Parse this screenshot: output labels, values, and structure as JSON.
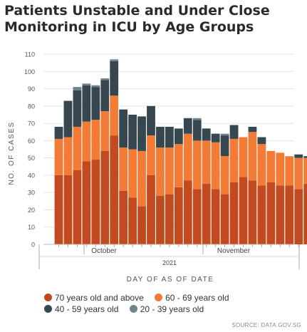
{
  "title": "Patients Unstable and Under Close Monitoring in ICU by Age Groups",
  "source": "SOURCE: DATA.GOV.SG",
  "chart_data": {
    "type": "bar",
    "stacked": true,
    "xlabel": "DAY OF AS OF DATE",
    "ylabel": "NO. OF CASES",
    "ylim": [
      0,
      110
    ],
    "yticks": [
      0,
      10,
      20,
      30,
      40,
      50,
      60,
      70,
      80,
      90,
      100,
      110
    ],
    "grid": "horizontal",
    "legend_position": "bottom",
    "x_tick_labels": [
      "October",
      "November"
    ],
    "year_label": "2021",
    "colors": {
      "70 years old and above": "#c24a1e",
      "60 - 69 years old": "#f47b36",
      "40 - 59 years old": "#364750",
      "20 - 39 years old": "#6f848c"
    },
    "series": [
      {
        "name": "70 years old and above",
        "values": [
          40,
          40,
          43,
          48,
          49,
          54,
          63,
          31,
          27,
          22,
          40,
          28,
          29,
          33,
          37,
          32,
          35,
          32,
          29,
          36,
          39,
          37,
          34,
          36,
          34,
          34,
          32,
          35
        ]
      },
      {
        "name": "60 - 69 years old",
        "values": [
          21,
          22,
          25,
          23,
          23,
          23,
          23,
          25,
          28,
          32,
          23,
          28,
          27,
          25,
          27,
          28,
          25,
          27,
          22,
          25,
          23,
          28,
          24,
          18,
          19,
          17,
          18,
          15
        ]
      },
      {
        "name": "40 - 59 years old",
        "values": [
          7,
          21,
          21,
          21,
          19,
          18,
          20,
          22,
          20,
          20,
          17,
          12,
          12,
          9,
          9,
          12,
          7,
          5,
          12,
          8,
          0,
          3,
          4,
          0,
          0,
          0,
          2,
          1
        ]
      },
      {
        "name": "20 - 39 years old",
        "values": [
          0,
          0,
          2,
          1,
          1,
          1,
          1,
          0,
          0,
          0,
          0,
          0,
          0,
          0,
          0,
          1,
          0,
          0,
          1,
          0,
          0,
          0,
          0,
          0,
          0,
          0,
          0,
          0
        ]
      }
    ]
  }
}
